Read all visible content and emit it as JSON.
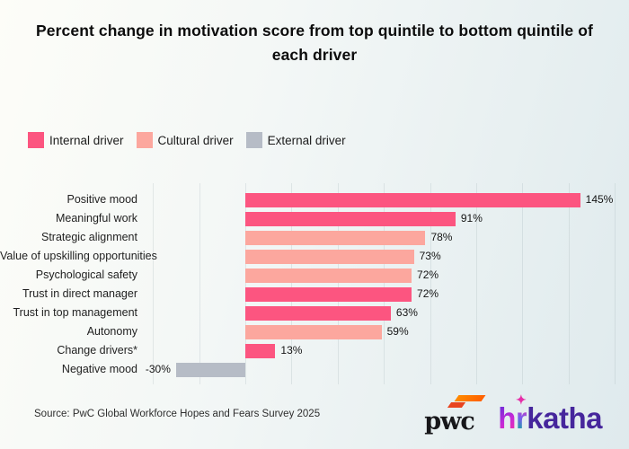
{
  "title": "Percent change in motivation score from top quintile to bottom quintile of each driver",
  "legend": {
    "items": [
      {
        "label": "Internal driver",
        "color": "#fc5580"
      },
      {
        "label": "Cultural driver",
        "color": "#fca79e"
      },
      {
        "label": "External driver",
        "color": "#b6bcc6"
      }
    ]
  },
  "chart_data": {
    "type": "bar",
    "orientation": "horizontal",
    "title": "Percent change in motivation score from top quintile to bottom quintile of each driver",
    "categories": [
      "Positive mood",
      "Meaningful work",
      "Strategic alignment",
      "Value of upskilling opportunities",
      "Psychological safety",
      "Trust in direct manager",
      "Trust in top management",
      "Autonomy",
      "Change drivers*",
      "Negative mood"
    ],
    "values": [
      145,
      91,
      78,
      73,
      72,
      72,
      63,
      59,
      13,
      -30
    ],
    "value_labels": [
      "145%",
      "91%",
      "78%",
      "73%",
      "72%",
      "72%",
      "63%",
      "59%",
      "13%",
      "-30%"
    ],
    "driver_types": [
      "internal",
      "internal",
      "cultural",
      "cultural",
      "cultural",
      "internal",
      "internal",
      "cultural",
      "internal",
      "external"
    ],
    "series_colors": {
      "internal": "#fc5580",
      "cultural": "#fca79e",
      "external": "#b6bcc6"
    },
    "legend_entries": [
      "Internal driver",
      "Cultural driver",
      "External driver"
    ],
    "legend_position": "top-left",
    "xlabel": "",
    "ylabel": "",
    "xlim": [
      -50,
      160
    ],
    "gridline_step_pct": 20,
    "grid": true
  },
  "footer": {
    "source": "Source: PwC Global Workforce Hopes and Fears Survey 2025",
    "logos": {
      "pwc_text": "pwc",
      "hrkatha_h": "h",
      "hrkatha_star": "✦",
      "hrkatha_r": "r",
      "hrkatha_katha": "katha"
    }
  }
}
